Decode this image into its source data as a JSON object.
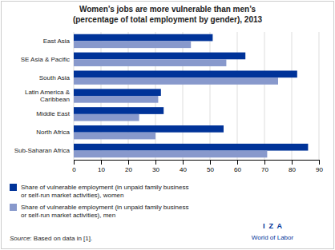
{
  "chart_data": {
    "type": "bar",
    "orientation": "horizontal",
    "title": "Women’s jobs are more vulnerable than men’s",
    "subtitle": "(percentage of total employment by gender), 2013",
    "categories": [
      "Sub-Saharan Africa",
      "North Africa",
      "Middle East",
      "Latin America &\nCaribbean",
      "South Asia",
      "SE Asia & Pacific",
      "East Asia"
    ],
    "series": [
      {
        "name": "Share of vulnerable employment (in unpaid family business\nor self-run market activities), women",
        "color": "#003399",
        "values": [
          86,
          55,
          33,
          32,
          82,
          63,
          51
        ]
      },
      {
        "name": "Share of vulnerable employment (in unpaid family business\nor self-run market activities), men",
        "color": "#8899cc",
        "values": [
          71,
          30,
          24,
          31,
          75,
          56,
          43
        ]
      }
    ],
    "xlim": [
      0,
      90
    ],
    "xticks": [
      0,
      10,
      20,
      30,
      40,
      50,
      60,
      70,
      80,
      90
    ],
    "grid": true,
    "legend": "bottom",
    "annotations": [
      "Source",
      ": Based on data in [1].",
      "I  Z  A",
      "World of Labor"
    ]
  }
}
